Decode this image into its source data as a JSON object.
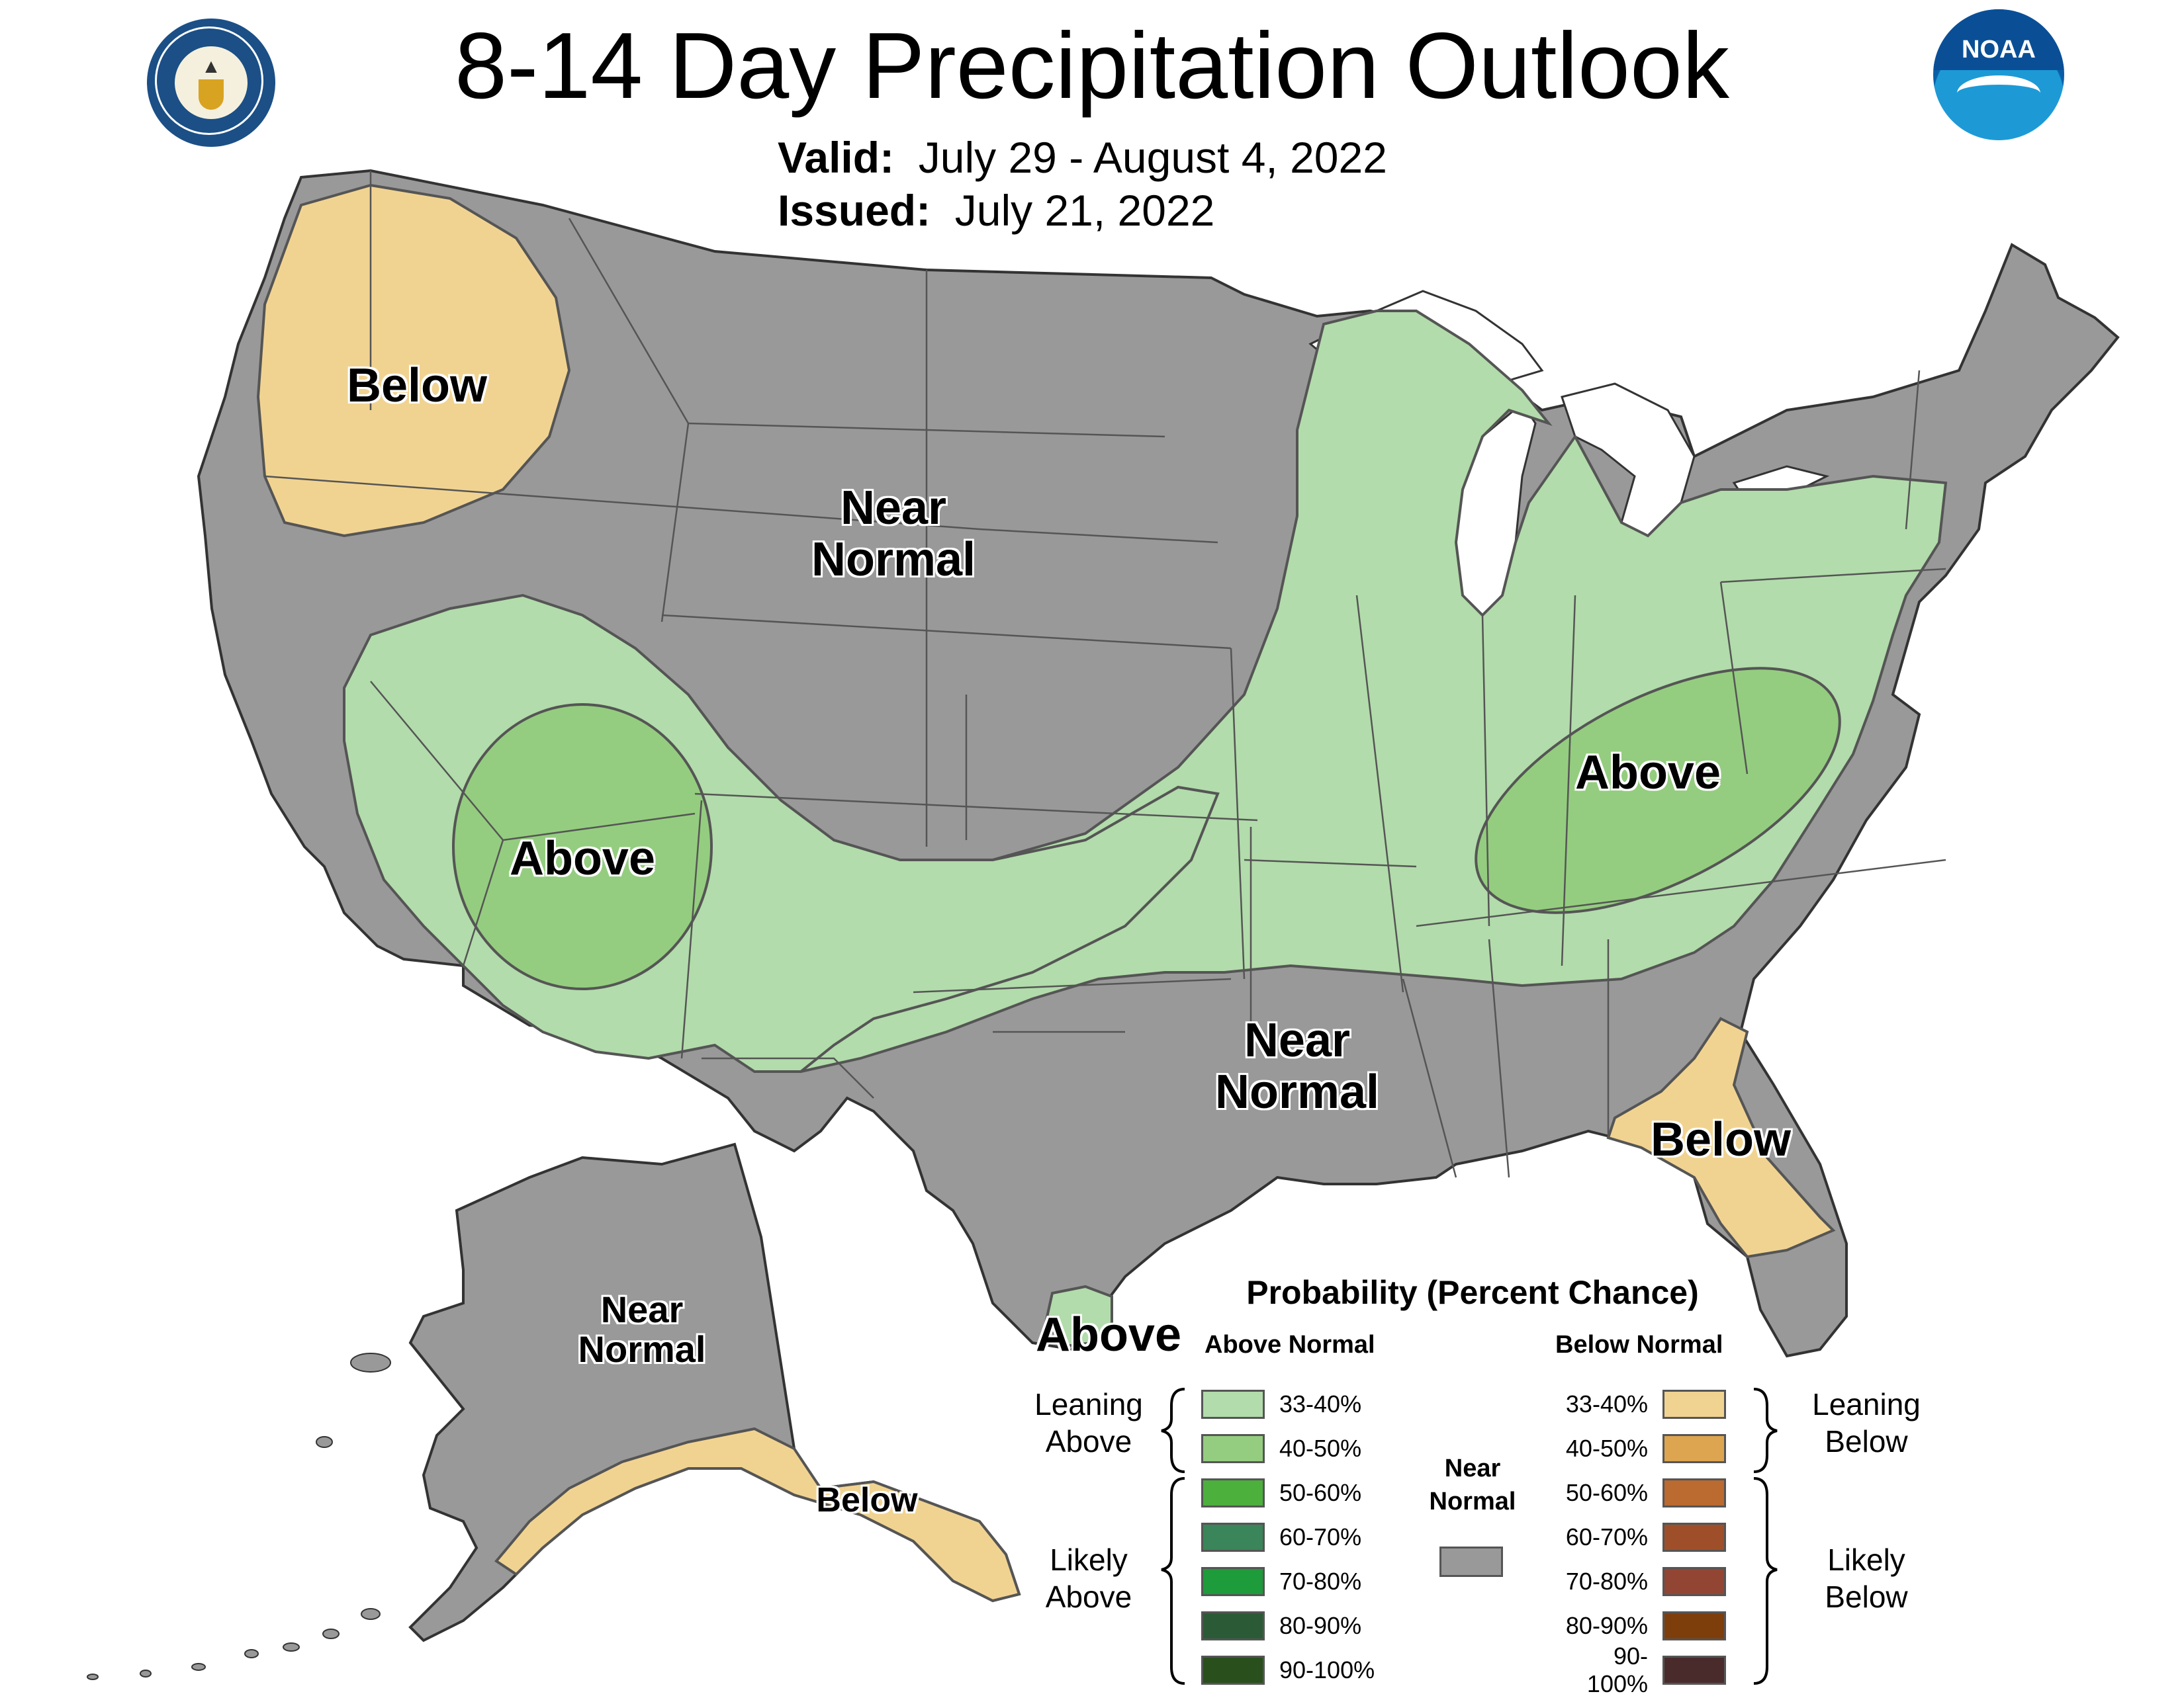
{
  "title": "8-14 Day Precipitation Outlook",
  "valid": {
    "label": "Valid:",
    "value": "July 29 - August 4, 2022"
  },
  "issued": {
    "label": "Issued:",
    "value": "July 21, 2022"
  },
  "logos": {
    "left": "department-of-commerce-seal",
    "right": "noaa-logo",
    "noaa_text": "NOAA"
  },
  "map_labels": {
    "nw_below": "Below",
    "north_near_normal_1": "Near",
    "north_near_normal_2": "Normal",
    "sw_above": "Above",
    "east_above": "Above",
    "south_near_normal_1": "Near",
    "south_near_normal_2": "Normal",
    "fl_below": "Below",
    "tx_above": "Above",
    "ak_near_normal_1": "Near",
    "ak_near_normal_2": "Normal",
    "ak_below": "Below"
  },
  "legend": {
    "title": "Probability (Percent Chance)",
    "above_header": "Above Normal",
    "below_header": "Below Normal",
    "near_normal_1": "Near",
    "near_normal_2": "Normal",
    "near_color": "#999999",
    "leaning_above_1": "Leaning",
    "leaning_above_2": "Above",
    "likely_above_1": "Likely",
    "likely_above_2": "Above",
    "leaning_below_1": "Leaning",
    "leaning_below_2": "Below",
    "likely_below_1": "Likely",
    "likely_below_2": "Below",
    "above": [
      {
        "label": "33-40%",
        "color": "#b2dcab"
      },
      {
        "label": "40-50%",
        "color": "#94cd7f"
      },
      {
        "label": "50-60%",
        "color": "#4cb03d"
      },
      {
        "label": "60-70%",
        "color": "#3a8559"
      },
      {
        "label": "70-80%",
        "color": "#1e9b3a"
      },
      {
        "label": "80-90%",
        "color": "#2b5b36"
      },
      {
        "label": "90-100%",
        "color": "#284f1c"
      }
    ],
    "below": [
      {
        "label": "33-40%",
        "color": "#f1d391"
      },
      {
        "label": "40-50%",
        "color": "#dda550"
      },
      {
        "label": "50-60%",
        "color": "#bb6a30"
      },
      {
        "label": "60-70%",
        "color": "#9e4f2a"
      },
      {
        "label": "70-80%",
        "color": "#934534"
      },
      {
        "label": "80-90%",
        "color": "#7e3e0c"
      },
      {
        "label": "90-100%",
        "color": "#4a2b2b"
      }
    ]
  },
  "colors": {
    "near_normal": "#999999",
    "leaning_above": "#b2dcab",
    "above_40_50": "#94cd7f",
    "leaning_below": "#f1d391",
    "water": "#ffffff",
    "outline": "#333333"
  }
}
